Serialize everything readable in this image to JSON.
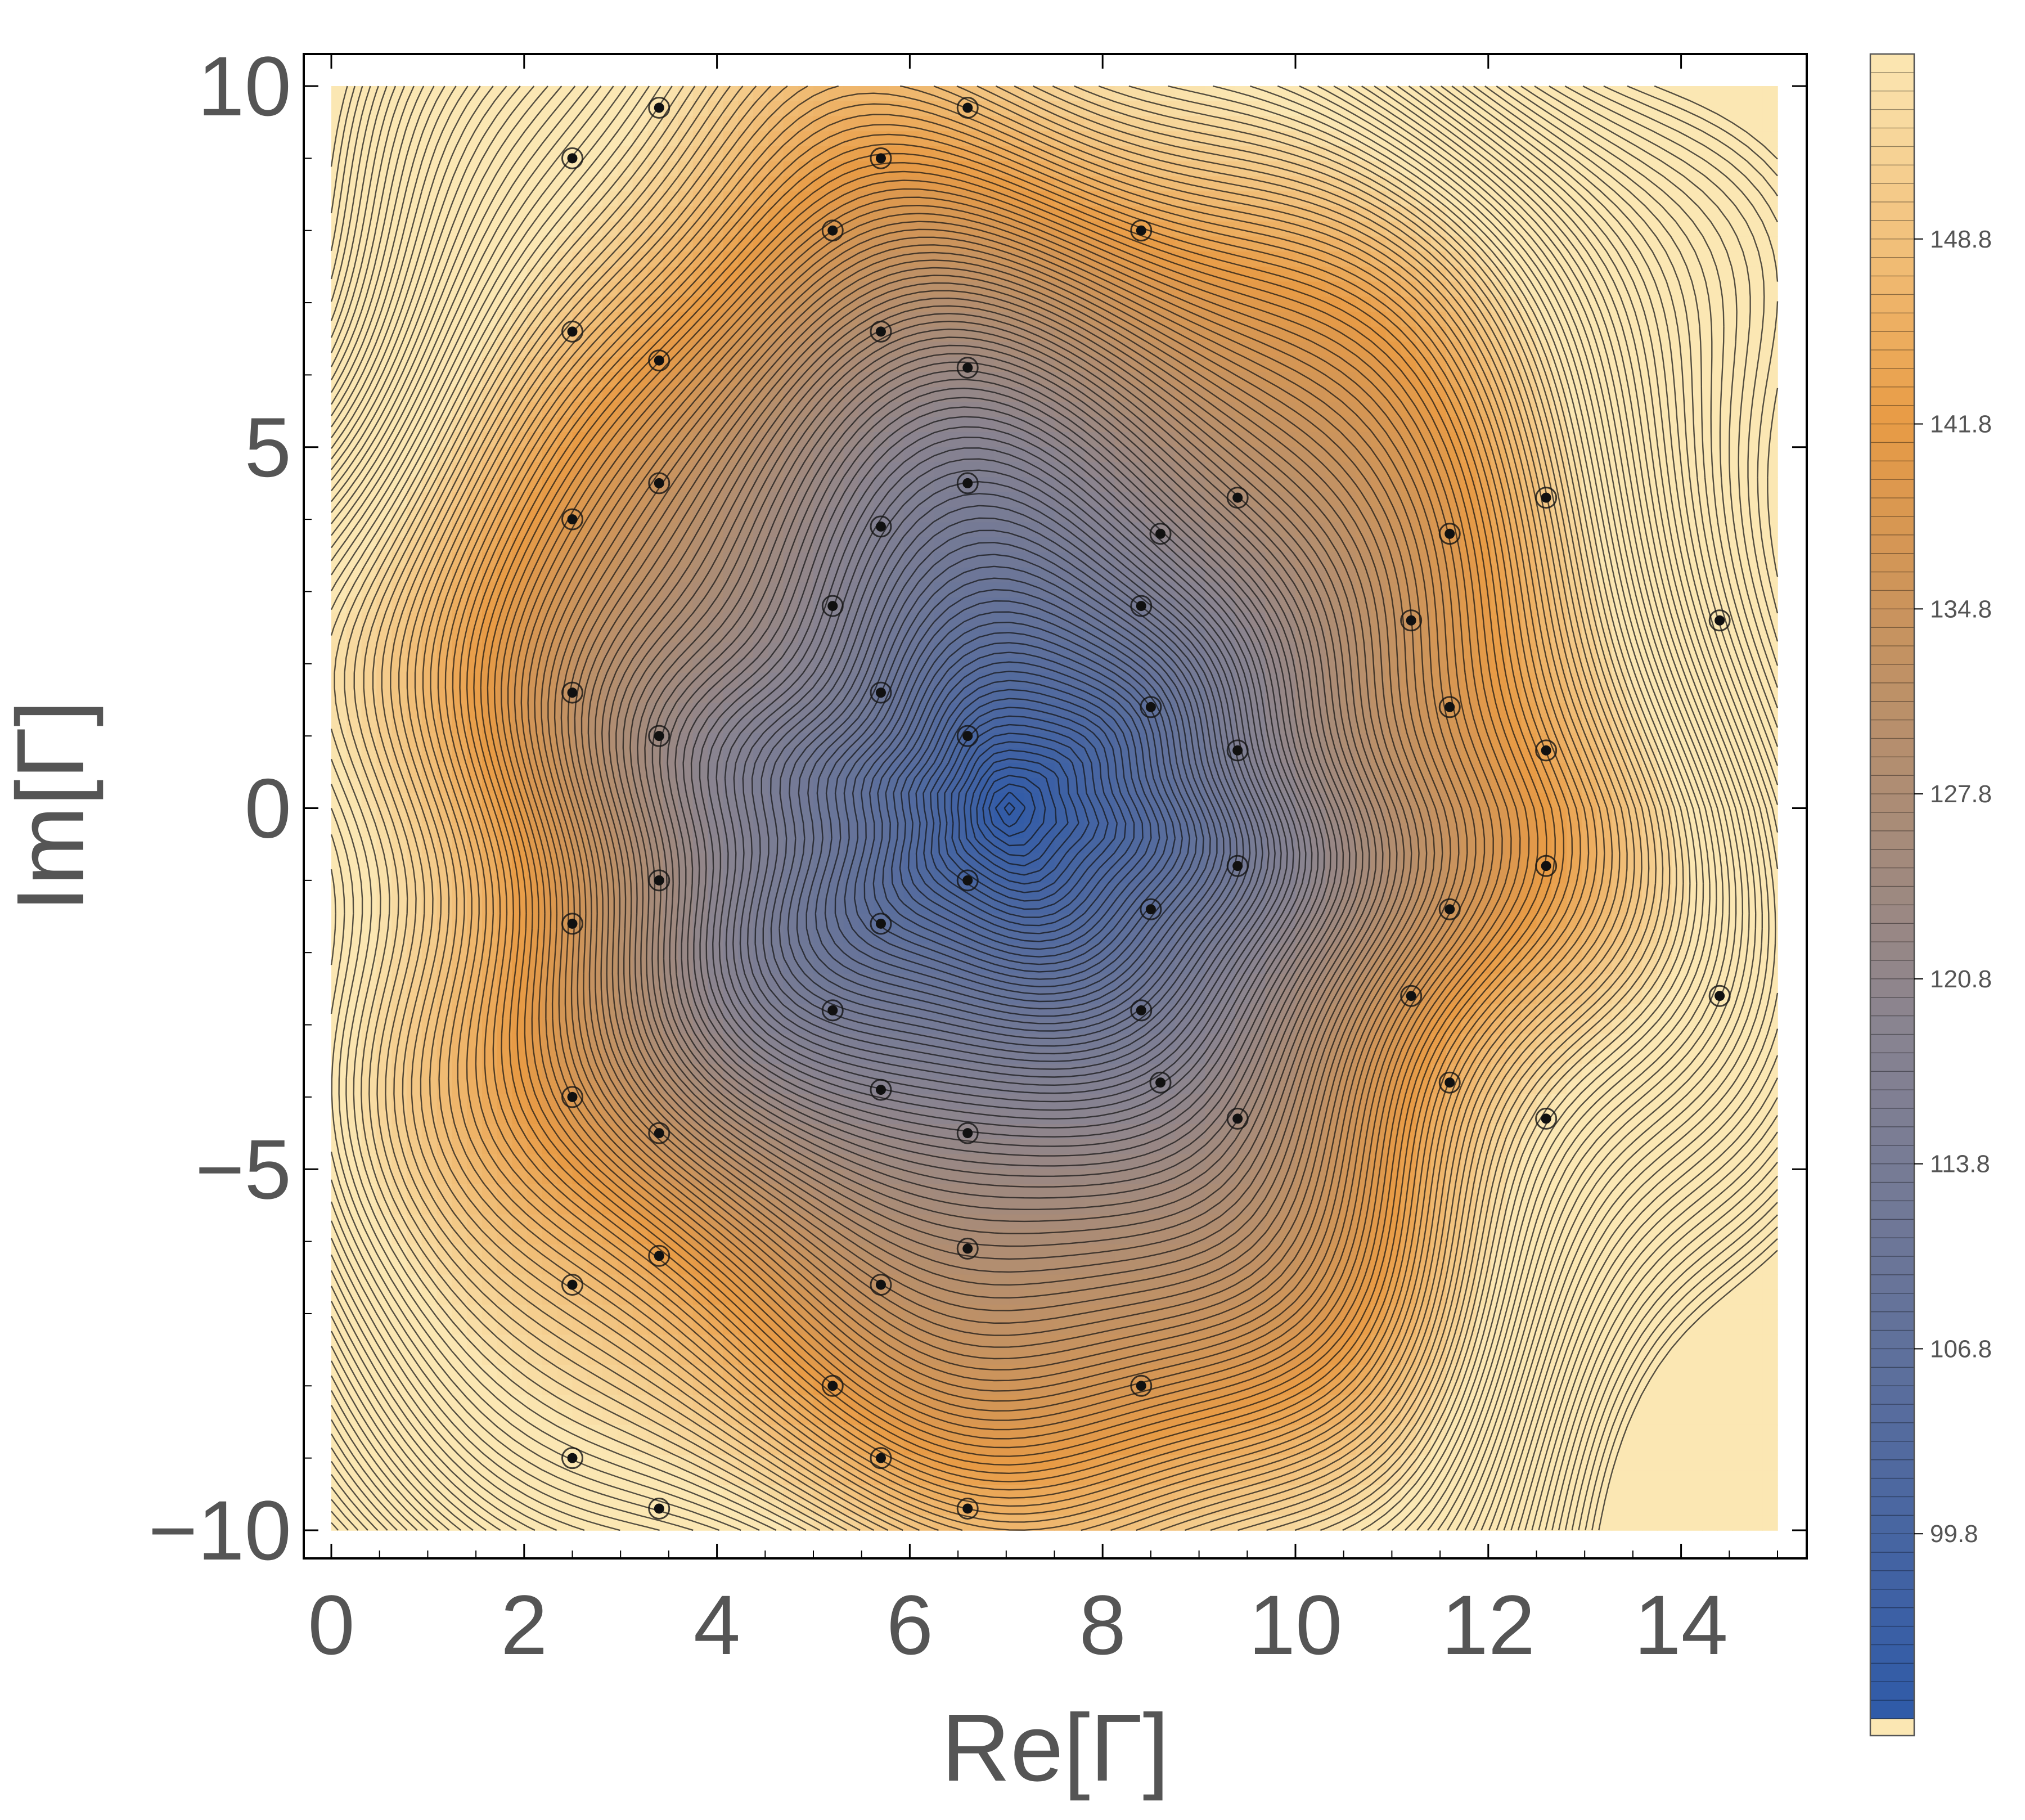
{
  "chart_data": {
    "type": "heatmap",
    "subtype": "contour",
    "xlabel": "Re[Γ]",
    "ylabel": "Im[Γ]",
    "xlim": [
      0,
      15
    ],
    "ylim": [
      -10,
      10
    ],
    "x_ticks": [
      0,
      2,
      4,
      6,
      8,
      10,
      12,
      14
    ],
    "x_tick_labels": [
      "0",
      "2",
      "4",
      "6",
      "8",
      "10",
      "12",
      "14"
    ],
    "y_ticks": [
      10,
      5,
      0,
      -5,
      -10
    ],
    "y_tick_labels": [
      "10",
      "5",
      "0",
      "−5",
      "−10"
    ],
    "colorbar": {
      "range": [
        92.8,
        155.8
      ],
      "ticks": [
        148.8,
        141.8,
        134.8,
        127.8,
        120.8,
        113.8,
        106.8,
        99.8
      ],
      "tick_labels": [
        "148.8",
        "141.8",
        "134.8",
        "127.8",
        "120.8",
        "113.8",
        "106.8",
        "99.8"
      ],
      "colors": {
        "low": "#2f5aa8",
        "mid": "#8a8490",
        "high_mid": "#e89b45",
        "high": "#fbe7b3"
      }
    },
    "minimum": {
      "x": 7.0,
      "y": 0.0,
      "value": 93
    },
    "critical_points": [
      [
        2.5,
        9
      ],
      [
        5.7,
        9
      ],
      [
        2.5,
        6.6
      ],
      [
        5.7,
        6.6
      ],
      [
        6.6,
        6.1
      ],
      [
        3.4,
        6.2
      ],
      [
        3.4,
        4.5
      ],
      [
        6.6,
        4.5
      ],
      [
        9.4,
        4.3
      ],
      [
        2.5,
        4
      ],
      [
        12.6,
        4.3
      ],
      [
        11.6,
        3.8
      ],
      [
        5.7,
        3.9
      ],
      [
        8.6,
        3.8
      ],
      [
        5.2,
        2.8
      ],
      [
        8.4,
        2.8
      ],
      [
        11.2,
        2.6
      ],
      [
        14.4,
        2.6
      ],
      [
        5.7,
        1.6
      ],
      [
        8.5,
        1.4
      ],
      [
        6.6,
        1.0
      ],
      [
        9.4,
        0.8
      ],
      [
        2.5,
        1.6
      ],
      [
        3.4,
        1.0
      ],
      [
        11.6,
        1.4
      ],
      [
        12.6,
        0.8
      ],
      [
        2.5,
        -1.6
      ],
      [
        3.4,
        -1.0
      ],
      [
        11.6,
        -1.4
      ],
      [
        12.6,
        -0.8
      ],
      [
        6.6,
        -1.0
      ],
      [
        9.4,
        -0.8
      ],
      [
        5.7,
        -1.6
      ],
      [
        8.5,
        -1.4
      ],
      [
        5.2,
        -2.8
      ],
      [
        8.4,
        -2.8
      ],
      [
        11.2,
        -2.6
      ],
      [
        14.4,
        -2.6
      ],
      [
        5.7,
        -3.9
      ],
      [
        8.6,
        -3.8
      ],
      [
        2.5,
        -4
      ],
      [
        11.6,
        -3.8
      ],
      [
        12.6,
        -4.3
      ],
      [
        9.4,
        -4.3
      ],
      [
        6.6,
        -4.5
      ],
      [
        3.4,
        -4.5
      ],
      [
        3.4,
        -6.2
      ],
      [
        6.6,
        -6.1
      ],
      [
        2.5,
        -6.6
      ],
      [
        5.7,
        -6.6
      ],
      [
        2.5,
        -9
      ],
      [
        5.7,
        -9
      ],
      [
        3.4,
        -9.7
      ],
      [
        6.6,
        -9.7
      ],
      [
        8.4,
        -8.0
      ],
      [
        5.2,
        -8.0
      ],
      [
        3.4,
        9.7
      ],
      [
        6.6,
        9.7
      ],
      [
        8.4,
        8.0
      ],
      [
        5.2,
        8.0
      ]
    ]
  }
}
